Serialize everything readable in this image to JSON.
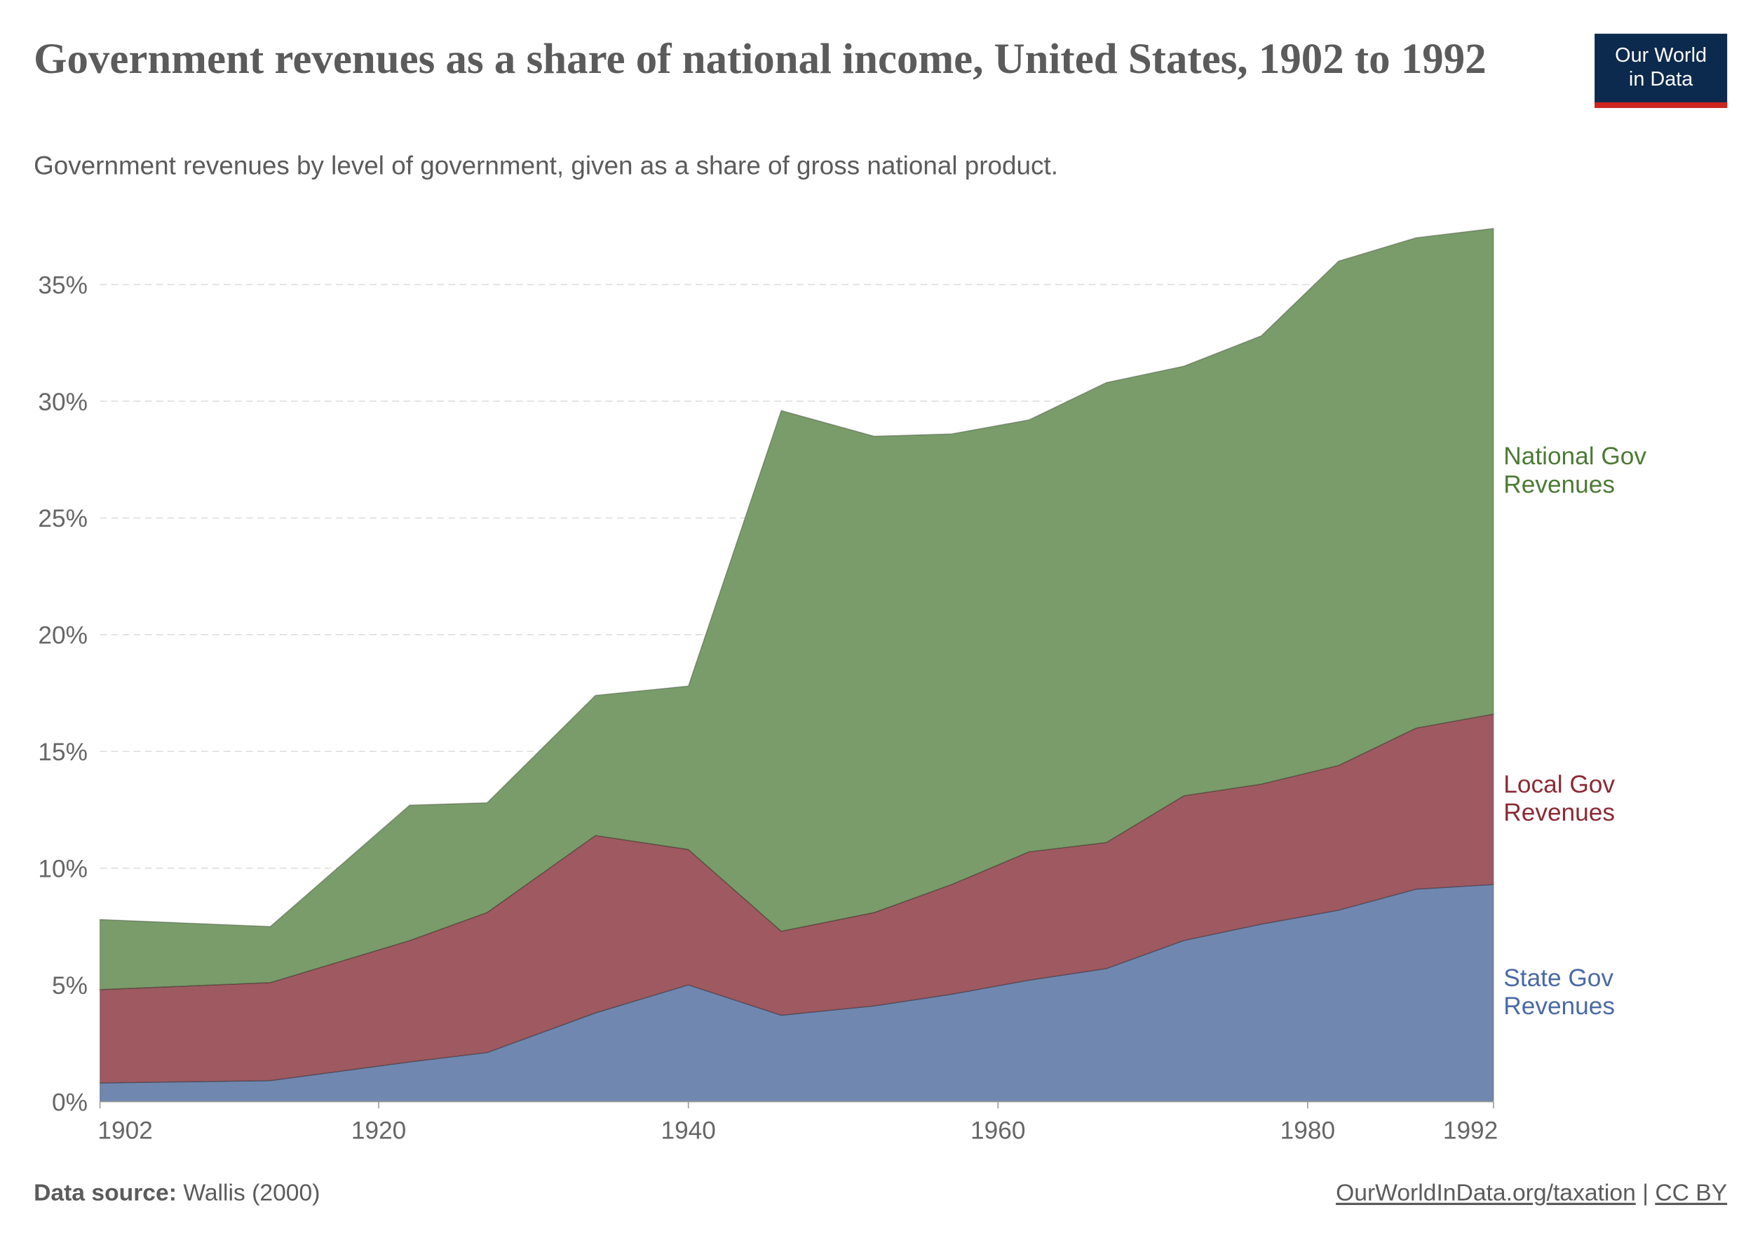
{
  "header": {
    "title": "Government revenues as a share of national income, United States, 1902 to 1992",
    "subtitle": "Government revenues by level of government, given as a share of gross national product.",
    "logo_line1": "Our World",
    "logo_line2": "in Data"
  },
  "footer": {
    "source_label": "Data source:",
    "source_value": "Wallis (2000)",
    "link": "OurWorldInData.org/taxation",
    "separator": "|",
    "license": "CC BY"
  },
  "chart_data": {
    "type": "area",
    "stacked": true,
    "x": [
      1902,
      1913,
      1922,
      1927,
      1934,
      1940,
      1946,
      1952,
      1957,
      1962,
      1967,
      1972,
      1977,
      1982,
      1987,
      1992
    ],
    "series": [
      {
        "name": "State Gov Revenues",
        "color": "#7088b0",
        "label_color": "#4a6aa5",
        "values": [
          0.8,
          0.9,
          1.7,
          2.1,
          3.8,
          5.0,
          3.7,
          4.1,
          4.6,
          5.2,
          5.7,
          6.9,
          7.6,
          8.2,
          9.1,
          9.3
        ]
      },
      {
        "name": "Local Gov Revenues",
        "color": "#9e5a60",
        "label_color": "#8a2a35",
        "values": [
          4.0,
          4.2,
          5.2,
          6.0,
          7.6,
          5.8,
          3.6,
          4.0,
          4.7,
          5.5,
          5.4,
          6.2,
          6.0,
          6.2,
          6.9,
          7.3
        ]
      },
      {
        "name": "National Gov Revenues",
        "color": "#7a9c6a",
        "label_color": "#4c7a34",
        "values": [
          3.0,
          2.4,
          5.8,
          4.7,
          6.0,
          7.0,
          22.3,
          20.4,
          19.3,
          18.5,
          19.7,
          18.4,
          19.2,
          21.6,
          21.0,
          20.8
        ]
      }
    ],
    "xlim": [
      1902,
      1992
    ],
    "ylim": [
      0,
      37.5
    ],
    "x_ticks": [
      1902,
      1920,
      1940,
      1960,
      1980,
      1992
    ],
    "y_ticks": [
      0,
      5,
      10,
      15,
      20,
      25,
      30,
      35
    ],
    "y_tick_labels": [
      "0%",
      "5%",
      "10%",
      "15%",
      "20%",
      "25%",
      "30%",
      "35%"
    ],
    "grid": "horizontal-dashed",
    "legend": "right-inline"
  }
}
